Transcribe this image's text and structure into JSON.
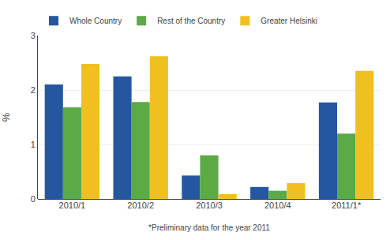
{
  "chart_data": {
    "type": "bar",
    "categories": [
      "2010/1",
      "2010/2",
      "2010/3",
      "2010/4",
      "2011/1*"
    ],
    "series": [
      {
        "name": "Whole Country",
        "color": "#2457a0",
        "values": [
          2.1,
          2.25,
          0.43,
          0.22,
          1.77
        ]
      },
      {
        "name": "Rest of the Country",
        "color": "#5aaa45",
        "values": [
          1.68,
          1.78,
          0.8,
          0.15,
          1.2
        ]
      },
      {
        "name": "Greater Helsinki",
        "color": "#f0c020",
        "values": [
          2.48,
          2.62,
          0.09,
          0.29,
          2.35
        ]
      }
    ],
    "ylabel": "%",
    "xlabel": "*Preliminary data for the year 2011",
    "ylim": [
      0,
      3
    ],
    "yticks": [
      0,
      1,
      2,
      3
    ],
    "grid": true,
    "legend": "top left"
  }
}
